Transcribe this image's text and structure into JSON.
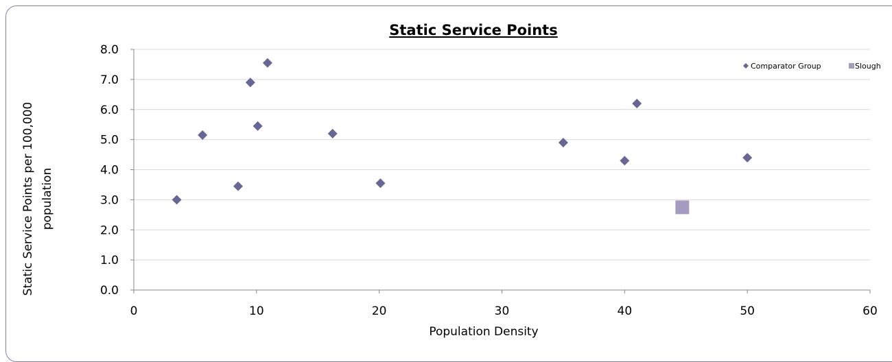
{
  "chart_data": {
    "type": "scatter",
    "title": "Static Service Points",
    "xlabel": "Population Density",
    "ylabel_lines": [
      "Static Service Points per 100,000",
      "population"
    ],
    "xlim": [
      0,
      60
    ],
    "ylim": [
      0,
      8
    ],
    "x_ticks": [
      "0",
      "10",
      "20",
      "30",
      "40",
      "50",
      "60"
    ],
    "y_ticks": [
      "0.0",
      "1.0",
      "2.0",
      "3.0",
      "4.0",
      "5.0",
      "6.0",
      "7.0",
      "8.0"
    ],
    "grid": "horizontal",
    "legend_position": "top-right",
    "series": [
      {
        "name": "Comparator Group",
        "marker": "diamond",
        "color": "#676795",
        "points": [
          {
            "x": 3.5,
            "y": 3.0
          },
          {
            "x": 5.6,
            "y": 5.15
          },
          {
            "x": 8.5,
            "y": 3.45
          },
          {
            "x": 9.5,
            "y": 6.9
          },
          {
            "x": 10.1,
            "y": 5.45
          },
          {
            "x": 10.9,
            "y": 7.55
          },
          {
            "x": 16.2,
            "y": 5.2
          },
          {
            "x": 20.1,
            "y": 3.55
          },
          {
            "x": 35.0,
            "y": 4.9
          },
          {
            "x": 40.0,
            "y": 4.3
          },
          {
            "x": 41.0,
            "y": 6.2
          },
          {
            "x": 50.0,
            "y": 4.4
          }
        ]
      },
      {
        "name": "Slough",
        "marker": "square",
        "color": "#a69bc0",
        "points": [
          {
            "x": 44.7,
            "y": 2.75
          }
        ]
      }
    ]
  }
}
